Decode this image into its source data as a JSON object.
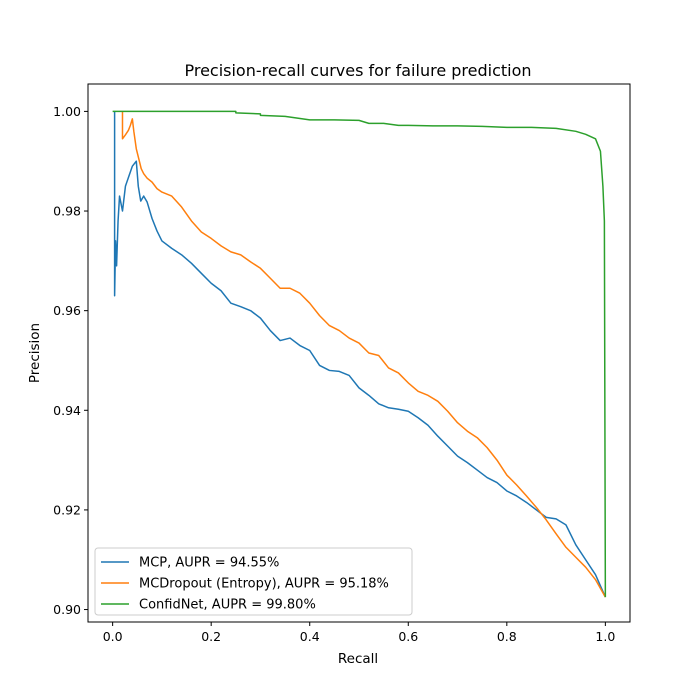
{
  "chart_data": {
    "type": "line",
    "title": "Precision-recall curves for failure prediction",
    "xlabel": "Recall",
    "ylabel": "Precision",
    "xlim": [
      -0.05,
      1.05
    ],
    "ylim": [
      0.8975,
      1.0055
    ],
    "xticks": [
      0.0,
      0.2,
      0.4,
      0.6,
      0.8,
      1.0
    ],
    "xtick_labels": [
      "0.0",
      "0.2",
      "0.4",
      "0.6",
      "0.8",
      "1.0"
    ],
    "yticks": [
      0.9,
      0.92,
      0.94,
      0.96,
      0.98,
      1.0
    ],
    "ytick_labels": [
      "0.90",
      "0.92",
      "0.94",
      "0.96",
      "0.98",
      "1.00"
    ],
    "grid": false,
    "legend_position": "lower-left",
    "series": [
      {
        "name": "MCP, AUPR = 94.55%",
        "color": "#1f77b4",
        "points": [
          [
            0.004,
            1.0
          ],
          [
            0.004,
            0.963
          ],
          [
            0.006,
            0.974
          ],
          [
            0.008,
            0.969
          ],
          [
            0.011,
            0.978
          ],
          [
            0.014,
            0.983
          ],
          [
            0.02,
            0.98
          ],
          [
            0.026,
            0.985
          ],
          [
            0.033,
            0.987
          ],
          [
            0.04,
            0.989
          ],
          [
            0.048,
            0.99
          ],
          [
            0.052,
            0.985
          ],
          [
            0.057,
            0.982
          ],
          [
            0.063,
            0.983
          ],
          [
            0.07,
            0.9818
          ],
          [
            0.08,
            0.9785
          ],
          [
            0.09,
            0.976
          ],
          [
            0.1,
            0.974
          ],
          [
            0.12,
            0.9725
          ],
          [
            0.14,
            0.9712
          ],
          [
            0.16,
            0.9695
          ],
          [
            0.18,
            0.9675
          ],
          [
            0.2,
            0.9655
          ],
          [
            0.22,
            0.964
          ],
          [
            0.24,
            0.9615
          ],
          [
            0.26,
            0.9608
          ],
          [
            0.28,
            0.96
          ],
          [
            0.3,
            0.9585
          ],
          [
            0.32,
            0.956
          ],
          [
            0.34,
            0.954
          ],
          [
            0.36,
            0.9545
          ],
          [
            0.38,
            0.953
          ],
          [
            0.4,
            0.952
          ],
          [
            0.42,
            0.949
          ],
          [
            0.44,
            0.948
          ],
          [
            0.46,
            0.9478
          ],
          [
            0.48,
            0.947
          ],
          [
            0.5,
            0.9445
          ],
          [
            0.52,
            0.943
          ],
          [
            0.54,
            0.9413
          ],
          [
            0.56,
            0.9405
          ],
          [
            0.58,
            0.9402
          ],
          [
            0.6,
            0.9398
          ],
          [
            0.62,
            0.9385
          ],
          [
            0.64,
            0.937
          ],
          [
            0.66,
            0.9348
          ],
          [
            0.68,
            0.9328
          ],
          [
            0.7,
            0.9308
          ],
          [
            0.72,
            0.9295
          ],
          [
            0.74,
            0.928
          ],
          [
            0.76,
            0.9265
          ],
          [
            0.78,
            0.9255
          ],
          [
            0.8,
            0.9238
          ],
          [
            0.82,
            0.9228
          ],
          [
            0.84,
            0.9215
          ],
          [
            0.86,
            0.92
          ],
          [
            0.88,
            0.9185
          ],
          [
            0.9,
            0.9182
          ],
          [
            0.92,
            0.917
          ],
          [
            0.94,
            0.913
          ],
          [
            0.96,
            0.91
          ],
          [
            0.98,
            0.907
          ],
          [
            1.0,
            0.9025
          ]
        ]
      },
      {
        "name": "MCDropout (Entropy), AUPR = 95.18%",
        "color": "#ff7f0e",
        "points": [
          [
            0.02,
            1.0
          ],
          [
            0.02,
            0.9945
          ],
          [
            0.026,
            0.9953
          ],
          [
            0.032,
            0.9962
          ],
          [
            0.036,
            0.9972
          ],
          [
            0.04,
            0.9985
          ],
          [
            0.043,
            0.996
          ],
          [
            0.048,
            0.9925
          ],
          [
            0.053,
            0.9905
          ],
          [
            0.058,
            0.9885
          ],
          [
            0.063,
            0.9875
          ],
          [
            0.07,
            0.9866
          ],
          [
            0.08,
            0.9858
          ],
          [
            0.09,
            0.9845
          ],
          [
            0.1,
            0.9838
          ],
          [
            0.12,
            0.983
          ],
          [
            0.14,
            0.9808
          ],
          [
            0.16,
            0.978
          ],
          [
            0.18,
            0.9758
          ],
          [
            0.2,
            0.9745
          ],
          [
            0.22,
            0.973
          ],
          [
            0.24,
            0.9718
          ],
          [
            0.26,
            0.9712
          ],
          [
            0.28,
            0.9698
          ],
          [
            0.3,
            0.9685
          ],
          [
            0.32,
            0.9665
          ],
          [
            0.34,
            0.9645
          ],
          [
            0.36,
            0.9645
          ],
          [
            0.38,
            0.9635
          ],
          [
            0.4,
            0.9615
          ],
          [
            0.42,
            0.959
          ],
          [
            0.44,
            0.957
          ],
          [
            0.46,
            0.956
          ],
          [
            0.48,
            0.9545
          ],
          [
            0.5,
            0.9535
          ],
          [
            0.52,
            0.9515
          ],
          [
            0.54,
            0.951
          ],
          [
            0.56,
            0.9485
          ],
          [
            0.58,
            0.9475
          ],
          [
            0.6,
            0.9455
          ],
          [
            0.62,
            0.9438
          ],
          [
            0.64,
            0.943
          ],
          [
            0.66,
            0.9418
          ],
          [
            0.68,
            0.9398
          ],
          [
            0.7,
            0.9375
          ],
          [
            0.72,
            0.9358
          ],
          [
            0.74,
            0.9345
          ],
          [
            0.76,
            0.9325
          ],
          [
            0.78,
            0.93
          ],
          [
            0.8,
            0.927
          ],
          [
            0.82,
            0.925
          ],
          [
            0.84,
            0.9228
          ],
          [
            0.86,
            0.9205
          ],
          [
            0.88,
            0.918
          ],
          [
            0.9,
            0.9152
          ],
          [
            0.92,
            0.9125
          ],
          [
            0.94,
            0.9105
          ],
          [
            0.96,
            0.9085
          ],
          [
            0.98,
            0.906
          ],
          [
            1.0,
            0.9025
          ]
        ]
      },
      {
        "name": "ConfidNet, AUPR = 99.80%",
        "color": "#2ca02c",
        "points": [
          [
            0.0,
            1.0
          ],
          [
            0.05,
            1.0
          ],
          [
            0.1,
            1.0
          ],
          [
            0.15,
            1.0
          ],
          [
            0.2,
            1.0
          ],
          [
            0.25,
            1.0
          ],
          [
            0.25,
            0.9997
          ],
          [
            0.3,
            0.9995
          ],
          [
            0.3,
            0.9992
          ],
          [
            0.35,
            0.999
          ],
          [
            0.4,
            0.9983
          ],
          [
            0.45,
            0.9983
          ],
          [
            0.5,
            0.9982
          ],
          [
            0.52,
            0.9976
          ],
          [
            0.55,
            0.9976
          ],
          [
            0.58,
            0.9972
          ],
          [
            0.6,
            0.9972
          ],
          [
            0.65,
            0.9971
          ],
          [
            0.7,
            0.9971
          ],
          [
            0.75,
            0.997
          ],
          [
            0.8,
            0.9968
          ],
          [
            0.85,
            0.9968
          ],
          [
            0.9,
            0.9966
          ],
          [
            0.94,
            0.996
          ],
          [
            0.96,
            0.9954
          ],
          [
            0.98,
            0.9945
          ],
          [
            0.99,
            0.992
          ],
          [
            0.995,
            0.985
          ],
          [
            0.998,
            0.978
          ],
          [
            1.0,
            0.9025
          ]
        ]
      }
    ]
  }
}
